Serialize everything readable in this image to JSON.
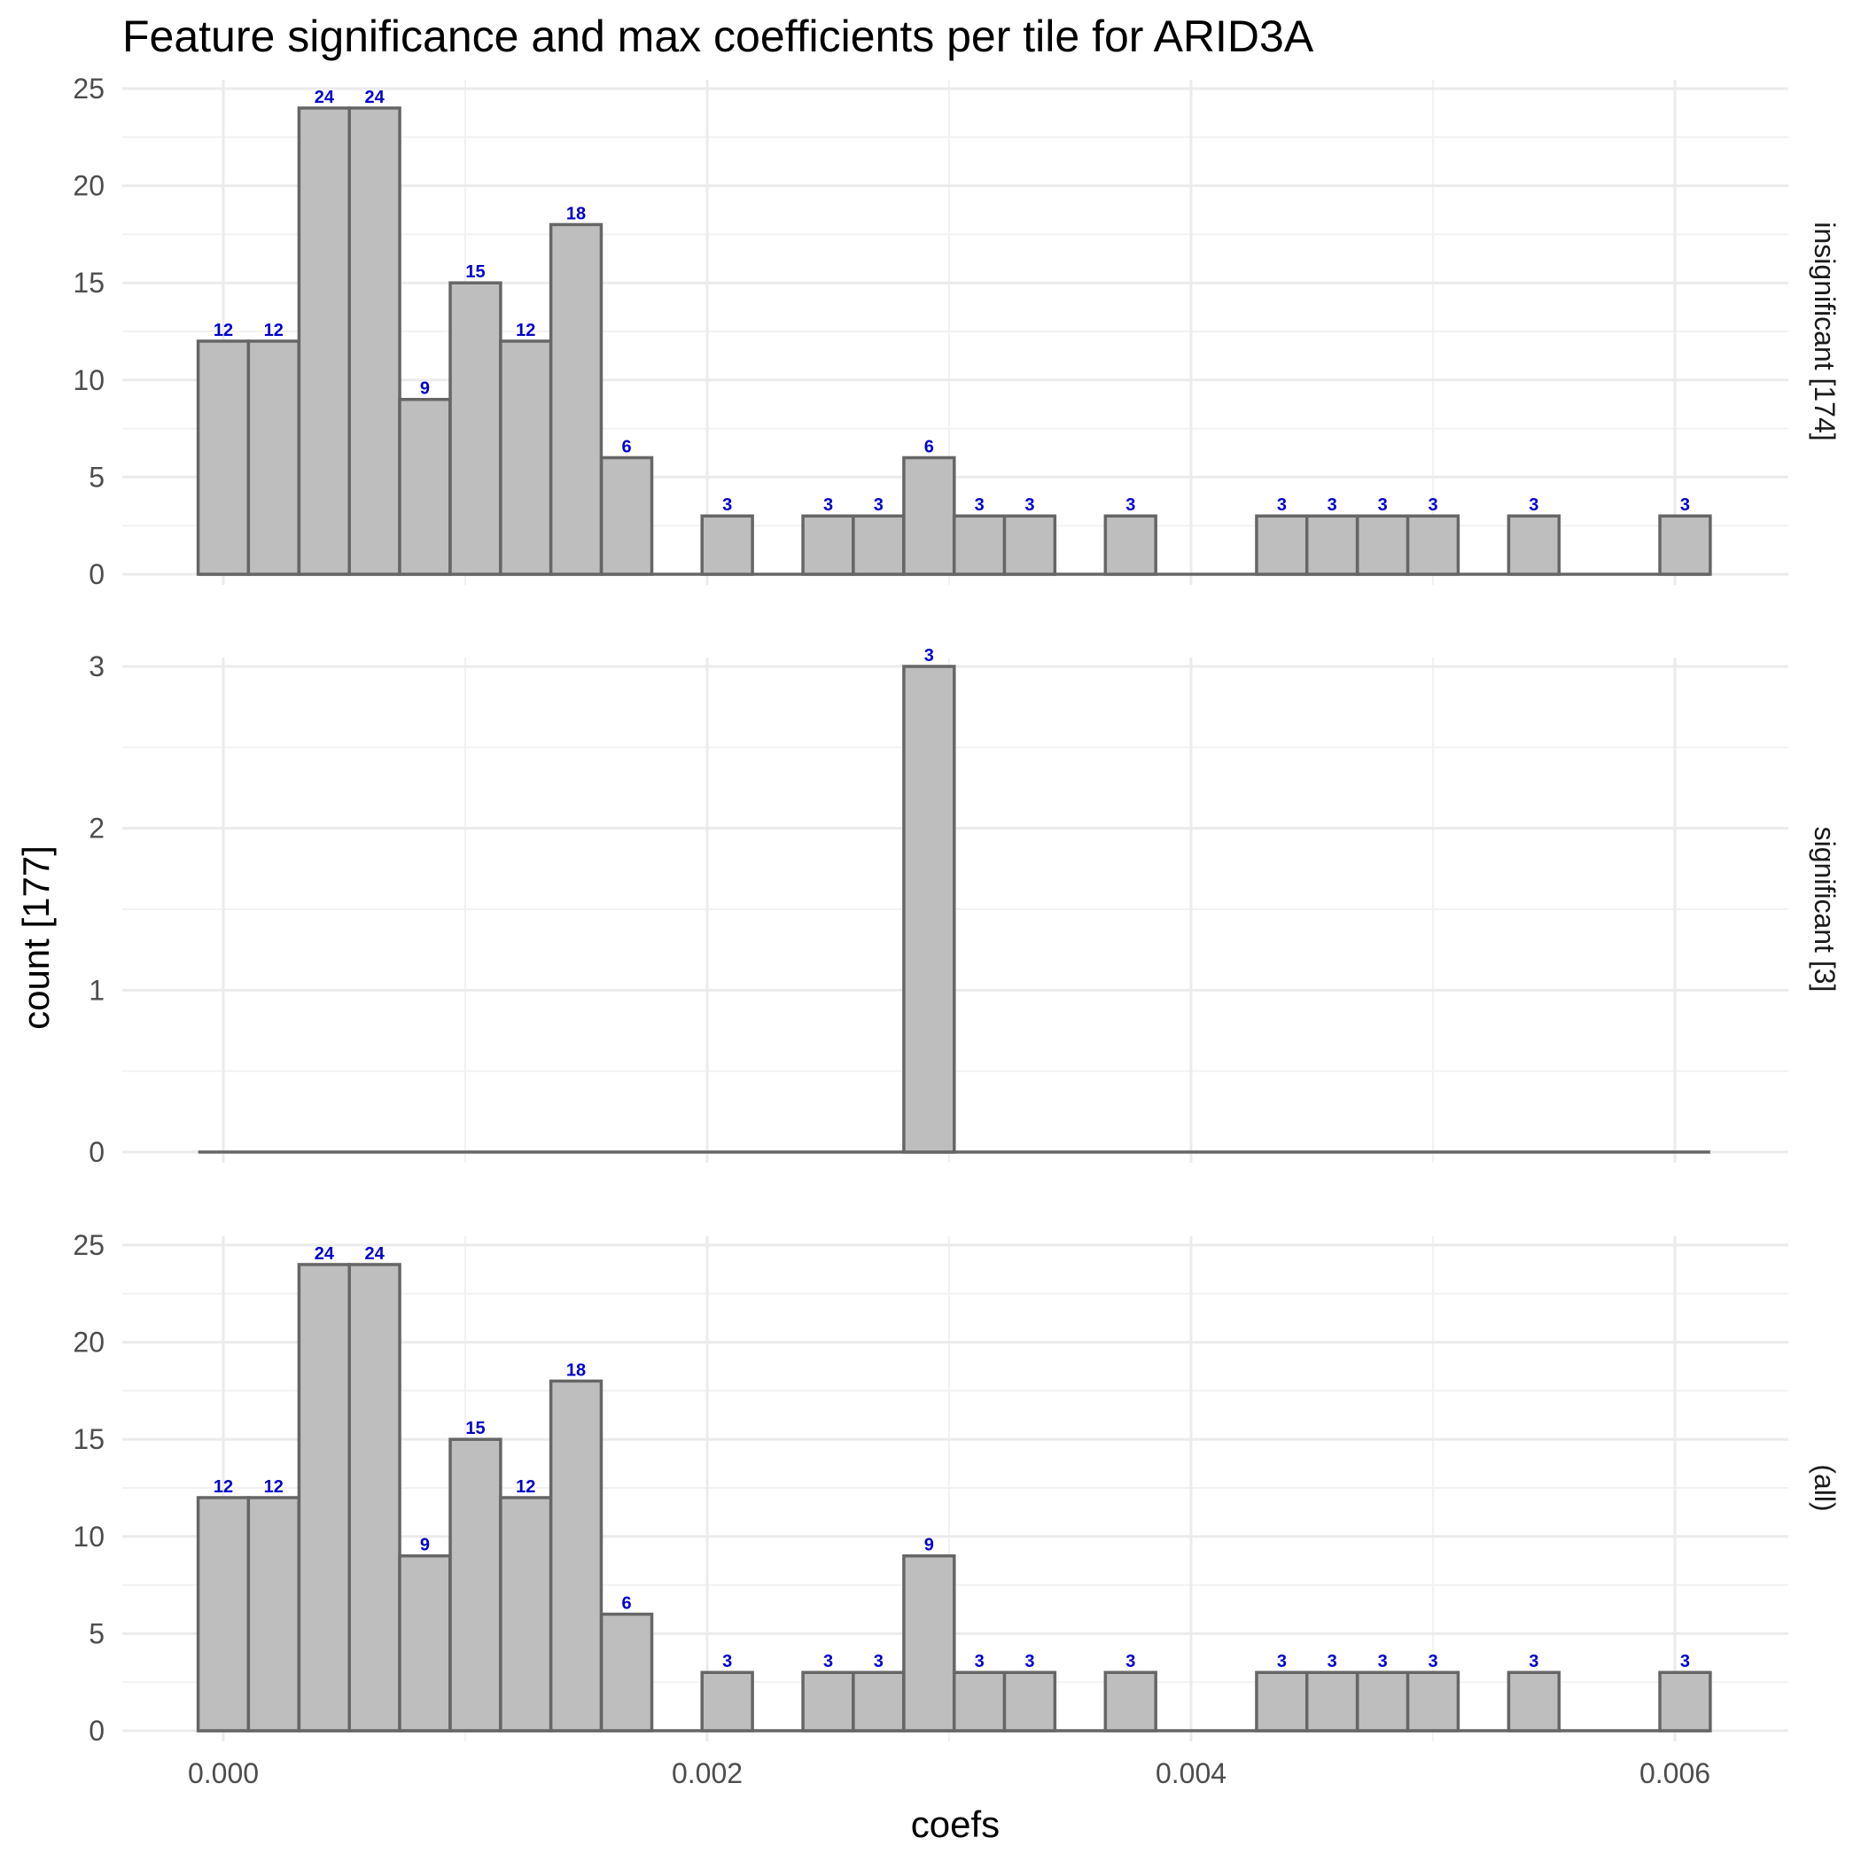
{
  "chart_data": {
    "type": "bar",
    "title": "Feature significance and max coefficients per tile for ARID3A",
    "xlabel": "coefs",
    "ylabel": "count [177]",
    "bin_width": 0.0002083,
    "x_range": [
      -0.000104,
      0.006146
    ],
    "x_ticks": [
      0.0,
      0.002,
      0.004,
      0.006
    ],
    "x_tick_labels": [
      "0.000",
      "0.002",
      "0.004",
      "0.006"
    ],
    "bin_centers": [
      0.0,
      0.000208,
      0.000417,
      0.000625,
      0.000833,
      0.001042,
      0.00125,
      0.001458,
      0.001667,
      0.001875,
      0.002083,
      0.002292,
      0.0025,
      0.002708,
      0.002917,
      0.003125,
      0.003333,
      0.003542,
      0.00375,
      0.003958,
      0.004167,
      0.004375,
      0.004583,
      0.004792,
      0.005,
      0.005208,
      0.005417,
      0.005625,
      0.005833,
      0.006042
    ],
    "grid": true,
    "panels": [
      {
        "name": "insignificant [174]",
        "ylim": [
          0,
          25
        ],
        "y_ticks": [
          0,
          5,
          10,
          15,
          20,
          25
        ],
        "values": [
          12,
          12,
          24,
          24,
          9,
          15,
          12,
          18,
          6,
          0,
          3,
          0,
          3,
          3,
          6,
          3,
          3,
          0,
          3,
          0,
          0,
          3,
          3,
          3,
          3,
          0,
          3,
          0,
          0,
          3
        ]
      },
      {
        "name": "significant [3]",
        "ylim": [
          0,
          3
        ],
        "y_ticks": [
          0,
          1,
          2,
          3
        ],
        "values": [
          0,
          0,
          0,
          0,
          0,
          0,
          0,
          0,
          0,
          0,
          0,
          0,
          0,
          0,
          3,
          0,
          0,
          0,
          0,
          0,
          0,
          0,
          0,
          0,
          0,
          0,
          0,
          0,
          0,
          0
        ]
      },
      {
        "name": "(all)",
        "ylim": [
          0,
          25
        ],
        "y_ticks": [
          0,
          5,
          10,
          15,
          20,
          25
        ],
        "values": [
          12,
          12,
          24,
          24,
          9,
          15,
          12,
          18,
          6,
          0,
          3,
          0,
          3,
          3,
          9,
          3,
          3,
          0,
          3,
          0,
          0,
          3,
          3,
          3,
          3,
          0,
          3,
          0,
          0,
          3
        ]
      }
    ]
  }
}
